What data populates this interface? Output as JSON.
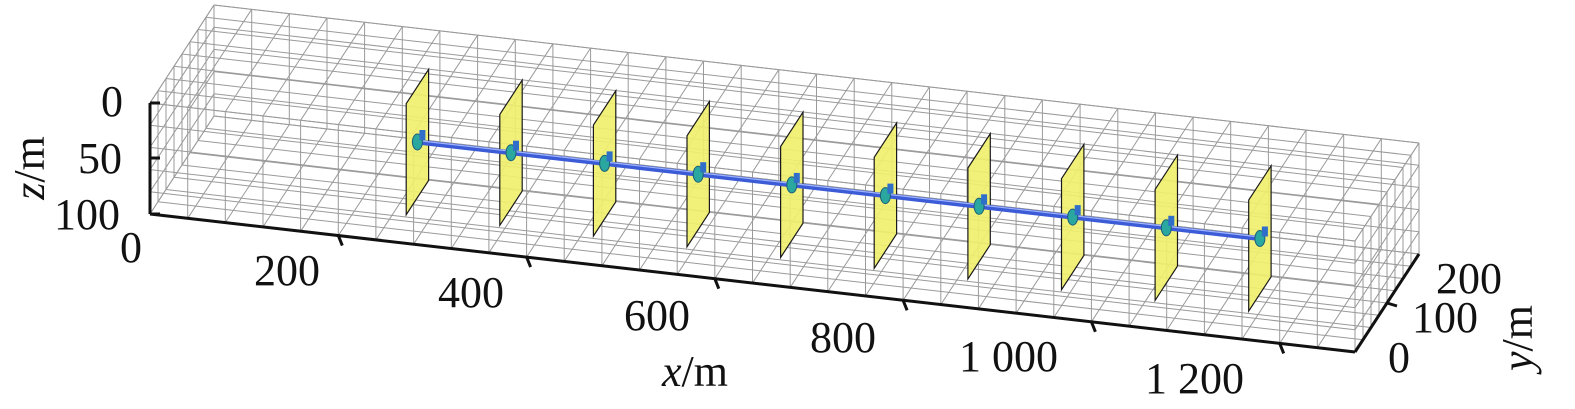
{
  "figure": {
    "x_axis": {
      "symbol": "x",
      "unit": "/m",
      "ticks": [
        "0",
        "200",
        "400",
        "600",
        "800",
        "1 000",
        "1 200"
      ]
    },
    "y_axis": {
      "symbol": "y",
      "unit": "/m",
      "ticks": [
        "0",
        "100",
        "200"
      ]
    },
    "z_axis": {
      "symbol": "z",
      "unit": "/m",
      "ticks": [
        "0",
        "50",
        "100"
      ]
    },
    "fracture_count": 10,
    "colors": {
      "grid": "#9a9a9a",
      "fracture_fill": "#f0ef6e",
      "fracture_edge": "#1a1a1a",
      "wellbore": "#3c5bd6",
      "perforation": "#2aa8a0",
      "axis": "#111111"
    }
  }
}
